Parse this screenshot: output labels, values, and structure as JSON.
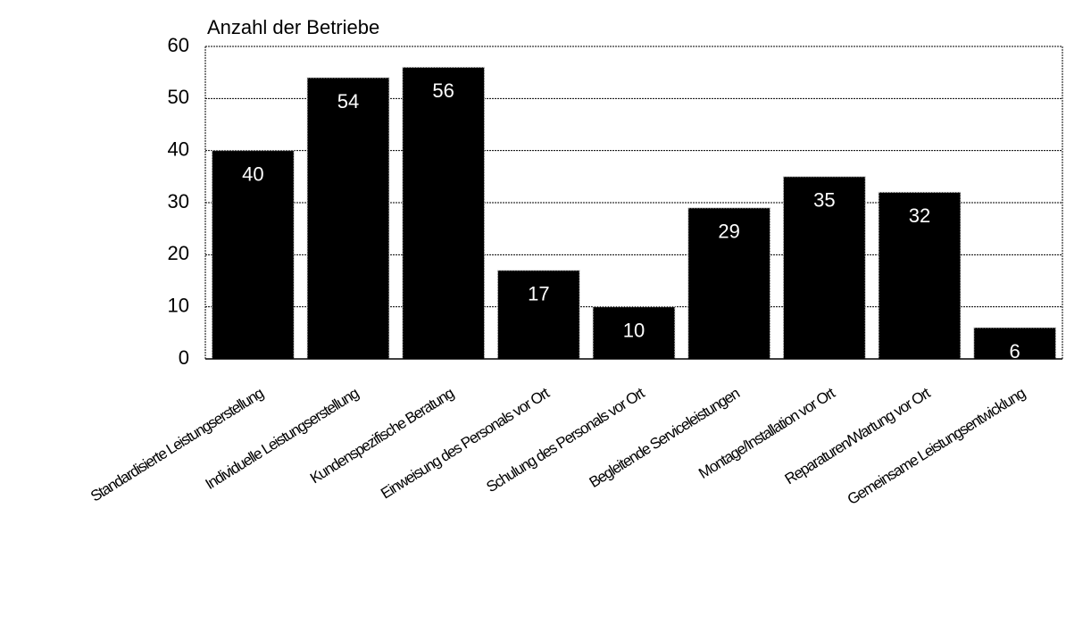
{
  "chart_data": {
    "type": "bar",
    "y_label": "Anzahl der Betriebe",
    "categories": [
      "Standardisierte Leistungserstellung",
      "Individuelle Leistungserstellung",
      "Kundenspezifische Beratung",
      "Einweisung des Personals vor Ort",
      "Schulung des Personals vor Ort",
      "Begleitende Serviceleistungen",
      "Montage/Installation vor Ort",
      "Reparaturen/Wartung vor Ort",
      "Gemeinsame Leistungsentwicklung"
    ],
    "values": [
      40,
      54,
      56,
      17,
      10,
      29,
      35,
      32,
      6
    ],
    "color": "#000000",
    "ylim": [
      0,
      60
    ],
    "yticks": [
      0,
      10,
      20,
      30,
      40,
      50,
      60
    ],
    "grid": true
  }
}
